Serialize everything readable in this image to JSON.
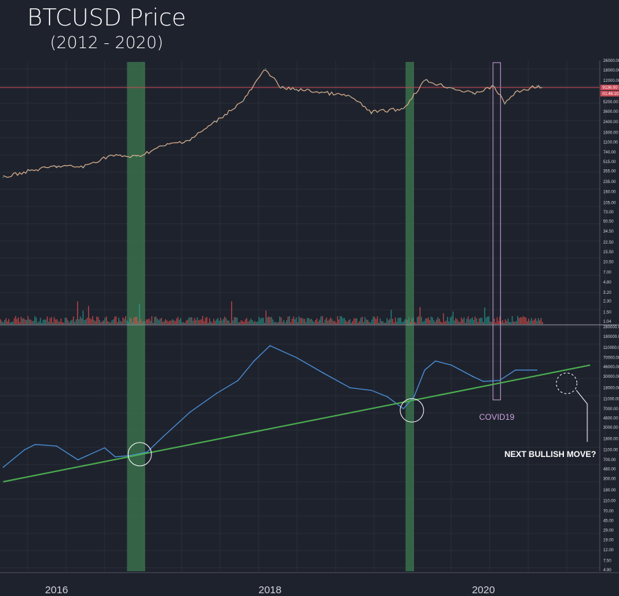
{
  "title": "BTCUSD Price",
  "subtitle": "(2012 - 2020)",
  "colors": {
    "background": "#1e222d",
    "grid": "#2a2e39",
    "price_line": "#4a90d9",
    "trendline": "#4caf50",
    "highlight_band": "#3d7a4f",
    "covid_box": "#c9a0dc",
    "hline": "#c84b57",
    "candle_up": "#26a69a",
    "candle_down": "#ef5350",
    "axis_text": "#d1d4dc"
  },
  "annotations": {
    "covid": "COVID19",
    "next_move": "NEXT BULLISH MOVE?",
    "price_tag_1": "9136.00",
    "price_tag_2": "01:46:10"
  },
  "chart_data": [
    {
      "type": "line",
      "name": "upper-price-panel",
      "x": [
        2015.5,
        2015.75,
        2016.0,
        2016.25,
        2016.5,
        2016.75,
        2017.0,
        2017.25,
        2017.5,
        2017.75,
        2017.96,
        2018.1,
        2018.25,
        2018.5,
        2018.75,
        2018.95,
        2019.25,
        2019.45,
        2019.7,
        2019.9,
        2020.1,
        2020.2,
        2020.3,
        2020.5,
        2020.55
      ],
      "y": [
        280,
        360,
        430,
        420,
        650,
        620,
        950,
        1200,
        2500,
        5500,
        19000,
        9000,
        8500,
        7500,
        6500,
        3500,
        4000,
        12000,
        9000,
        7200,
        9500,
        5000,
        7500,
        9700,
        9136
      ],
      "y_scale": "log",
      "y_ticks": [
        "26000.00",
        "18000.00",
        "12000.00",
        "5200.00",
        "3600.00",
        "2400.00",
        "1600.00",
        "1100.00",
        "740.00",
        "515.00",
        "355.00",
        "235.00",
        "160.00",
        "105.00",
        "73.00",
        "50.50",
        "34.50",
        "22.50",
        "15.50",
        "10.50",
        "7.00",
        "4.80",
        "3.20",
        "2.30",
        "1.50",
        "1.04"
      ]
    },
    {
      "type": "line",
      "name": "lower-indicator-panel",
      "x": [
        2015.5,
        2015.7,
        2015.8,
        2016.0,
        2016.2,
        2016.45,
        2016.55,
        2016.7,
        2016.85,
        2017.0,
        2017.25,
        2017.5,
        2017.7,
        2017.85,
        2018.0,
        2018.25,
        2018.5,
        2018.75,
        2018.95,
        2019.1,
        2019.25,
        2019.35,
        2019.45,
        2019.55,
        2019.7,
        2019.9,
        2020.0,
        2020.15,
        2020.3,
        2020.5
      ],
      "y": [
        500,
        1100,
        1400,
        1300,
        700,
        1200,
        800,
        850,
        1000,
        2000,
        6000,
        14000,
        25000,
        60000,
        120000,
        70000,
        35000,
        18000,
        16000,
        12000,
        7000,
        12000,
        40000,
        60000,
        50000,
        30000,
        24000,
        25000,
        40000,
        40000
      ],
      "trendline": {
        "x": [
          2015.5,
          2021.0
        ],
        "y": [
          260,
          50000
        ]
      },
      "y_scale": "log",
      "y_ticks": [
        "280000.00",
        "180000.00",
        "110000.00",
        "70000.00",
        "46000.00",
        "30000.00",
        "18000.00",
        "11000.00",
        "7000.00",
        "4600.00",
        "3000.00",
        "1800.00",
        "1100.00",
        "700.00",
        "460.00",
        "300.00",
        "180.00",
        "110.00",
        "70.00",
        "45.00",
        "29.00",
        "19.00",
        "12.00",
        "7.50",
        "4.90"
      ]
    }
  ],
  "x_axis": {
    "domain": [
      2015.47,
      2021.09
    ],
    "ticks": [
      {
        "value": 2016.0,
        "label": "2016"
      },
      {
        "value": 2018.0,
        "label": "2018"
      },
      {
        "value": 2020.0,
        "label": "2020"
      }
    ]
  },
  "highlight_bands": [
    {
      "from": 2016.66,
      "to": 2016.83
    },
    {
      "from": 2019.27,
      "to": 2019.35
    }
  ],
  "covid_box": {
    "from": 2020.09,
    "to": 2020.16
  },
  "circles": [
    {
      "x": 2016.78,
      "y": 900,
      "style": "solid"
    },
    {
      "x": 2019.33,
      "y": 6500,
      "style": "solid"
    },
    {
      "x": 2020.78,
      "y": 22000,
      "style": "dashed"
    }
  ],
  "horizontal_level": 9136
}
